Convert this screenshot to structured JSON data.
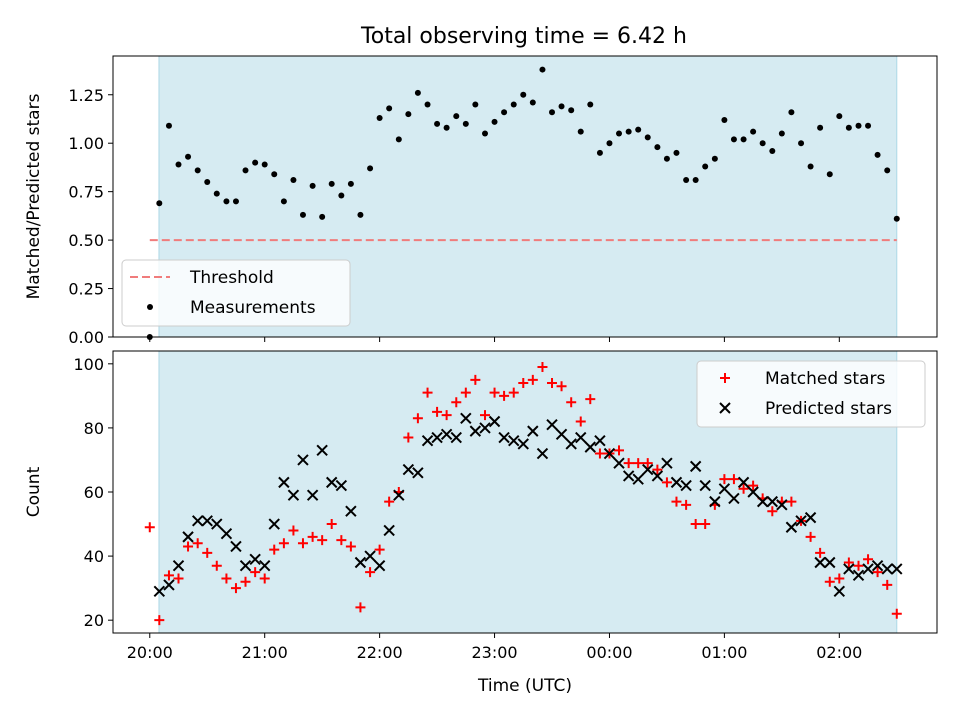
{
  "title": "Total observing time = 6.42 h",
  "chart_data": [
    {
      "type": "scatter",
      "ylabel": "Matched/Predicted stars",
      "ylim": [
        0,
        1.45
      ],
      "yticks": [
        "0.00",
        "0.25",
        "0.50",
        "0.75",
        "1.00",
        "1.25"
      ],
      "ytick_values": [
        0,
        0.25,
        0.5,
        0.75,
        1.0,
        1.25
      ],
      "xlim": [
        -0.32,
        6.85
      ],
      "observing_window": [
        0.08,
        6.5
      ],
      "legend": {
        "position": "lower-left",
        "entries": [
          "Threshold",
          "Measurements"
        ]
      },
      "threshold": {
        "name": "Threshold",
        "value": 0.5,
        "x": [
          0,
          6.5
        ],
        "color": "#f07c7c"
      },
      "series": [
        {
          "name": "Measurements",
          "color": "#000000",
          "x": [
            0.0,
            0.083,
            0.167,
            0.25,
            0.333,
            0.417,
            0.5,
            0.583,
            0.667,
            0.75,
            0.833,
            0.917,
            1.0,
            1.083,
            1.167,
            1.25,
            1.333,
            1.417,
            1.5,
            1.583,
            1.667,
            1.75,
            1.833,
            1.917,
            2.0,
            2.083,
            2.167,
            2.25,
            2.333,
            2.417,
            2.5,
            2.583,
            2.667,
            2.75,
            2.833,
            2.917,
            3.0,
            3.083,
            3.167,
            3.25,
            3.333,
            3.417,
            3.5,
            3.583,
            3.667,
            3.75,
            3.833,
            3.917,
            4.0,
            4.083,
            4.167,
            4.25,
            4.333,
            4.417,
            4.5,
            4.583,
            4.667,
            4.75,
            4.833,
            4.917,
            5.0,
            5.083,
            5.167,
            5.25,
            5.333,
            5.417,
            5.5,
            5.583,
            5.667,
            5.75,
            5.833,
            5.917,
            6.0,
            6.083,
            6.167,
            6.25,
            6.333,
            6.417,
            6.5
          ],
          "y": [
            0.0,
            0.69,
            1.09,
            0.89,
            0.93,
            0.86,
            0.8,
            0.74,
            0.7,
            0.7,
            0.86,
            0.9,
            0.89,
            0.84,
            0.7,
            0.81,
            0.63,
            0.78,
            0.62,
            0.79,
            0.73,
            0.79,
            0.63,
            0.87,
            1.13,
            1.18,
            1.02,
            1.15,
            1.26,
            1.2,
            1.1,
            1.08,
            1.14,
            1.1,
            1.2,
            1.05,
            1.11,
            1.16,
            1.2,
            1.25,
            1.21,
            1.38,
            1.16,
            1.19,
            1.17,
            1.06,
            1.2,
            0.95,
            1.0,
            1.05,
            1.06,
            1.07,
            1.03,
            0.98,
            0.92,
            0.95,
            0.81,
            0.81,
            0.88,
            0.92,
            1.12,
            1.02,
            1.02,
            1.06,
            1.0,
            0.96,
            1.05,
            1.16,
            1.0,
            0.88,
            1.08,
            0.84,
            1.14,
            1.08,
            1.09,
            1.09,
            0.94,
            0.86,
            0.61
          ]
        }
      ]
    },
    {
      "type": "scatter",
      "ylabel": "Count",
      "xlabel": "Time (UTC)",
      "ylim": [
        16,
        104
      ],
      "yticks": [
        "20",
        "40",
        "60",
        "80",
        "100"
      ],
      "ytick_values": [
        20,
        40,
        60,
        80,
        100
      ],
      "xlim": [
        -0.32,
        6.85
      ],
      "xticks": [
        "20:00",
        "21:00",
        "22:00",
        "23:00",
        "00:00",
        "01:00",
        "02:00"
      ],
      "xtick_values": [
        0,
        1,
        2,
        3,
        4,
        5,
        6
      ],
      "observing_window": [
        0.08,
        6.5
      ],
      "legend": {
        "position": "upper-right",
        "entries": [
          "Matched stars",
          "Predicted stars"
        ]
      },
      "series": [
        {
          "name": "Matched stars",
          "marker": "plus",
          "color": "#ff0000",
          "x": [
            0.0,
            0.083,
            0.167,
            0.25,
            0.333,
            0.417,
            0.5,
            0.583,
            0.667,
            0.75,
            0.833,
            0.917,
            1.0,
            1.083,
            1.167,
            1.25,
            1.333,
            1.417,
            1.5,
            1.583,
            1.667,
            1.75,
            1.833,
            1.917,
            2.0,
            2.083,
            2.167,
            2.25,
            2.333,
            2.417,
            2.5,
            2.583,
            2.667,
            2.75,
            2.833,
            2.917,
            3.0,
            3.083,
            3.167,
            3.25,
            3.333,
            3.417,
            3.5,
            3.583,
            3.667,
            3.75,
            3.833,
            3.917,
            4.0,
            4.083,
            4.167,
            4.25,
            4.333,
            4.417,
            4.5,
            4.583,
            4.667,
            4.75,
            4.833,
            4.917,
            5.0,
            5.083,
            5.167,
            5.25,
            5.333,
            5.417,
            5.5,
            5.583,
            5.667,
            5.75,
            5.833,
            5.917,
            6.0,
            6.083,
            6.167,
            6.25,
            6.333,
            6.417,
            6.5
          ],
          "y": [
            49,
            20,
            34,
            33,
            43,
            44,
            41,
            37,
            33,
            30,
            32,
            35,
            33,
            42,
            44,
            48,
            44,
            46,
            45,
            50,
            45,
            43,
            24,
            35,
            42,
            57,
            60,
            77,
            83,
            91,
            85,
            84,
            88,
            91,
            95,
            84,
            91,
            90,
            91,
            94,
            95,
            99,
            94,
            93,
            88,
            82,
            89,
            72,
            72,
            73,
            69,
            69,
            69,
            67,
            63,
            57,
            56,
            50,
            50,
            56,
            64,
            64,
            61,
            62,
            58,
            54,
            57,
            57,
            51,
            46,
            41,
            32,
            33,
            38,
            37,
            39,
            35,
            31,
            22
          ]
        },
        {
          "name": "Predicted stars",
          "marker": "x",
          "color": "#000000",
          "x": [
            0.083,
            0.167,
            0.25,
            0.333,
            0.417,
            0.5,
            0.583,
            0.667,
            0.75,
            0.833,
            0.917,
            1.0,
            1.083,
            1.167,
            1.25,
            1.333,
            1.417,
            1.5,
            1.583,
            1.667,
            1.75,
            1.833,
            1.917,
            2.0,
            2.083,
            2.167,
            2.25,
            2.333,
            2.417,
            2.5,
            2.583,
            2.667,
            2.75,
            2.833,
            2.917,
            3.0,
            3.083,
            3.167,
            3.25,
            3.333,
            3.417,
            3.5,
            3.583,
            3.667,
            3.75,
            3.833,
            3.917,
            4.0,
            4.083,
            4.167,
            4.25,
            4.333,
            4.417,
            4.5,
            4.583,
            4.667,
            4.75,
            4.833,
            4.917,
            5.0,
            5.083,
            5.167,
            5.25,
            5.333,
            5.417,
            5.5,
            5.583,
            5.667,
            5.75,
            5.833,
            5.917,
            6.0,
            6.083,
            6.167,
            6.25,
            6.333,
            6.417,
            6.5
          ],
          "y": [
            29,
            31,
            37,
            46,
            51,
            51,
            50,
            47,
            43,
            37,
            39,
            37,
            50,
            63,
            59,
            70,
            59,
            73,
            63,
            62,
            54,
            38,
            40,
            37,
            48,
            59,
            67,
            66,
            76,
            77,
            78,
            77,
            83,
            79,
            80,
            82,
            77,
            76,
            75,
            79,
            72,
            81,
            78,
            75,
            77,
            74,
            76,
            72,
            69,
            65,
            64,
            67,
            65,
            69,
            63,
            62,
            68,
            62,
            57,
            61,
            58,
            63,
            60,
            57,
            57,
            56,
            49,
            51,
            52,
            38,
            38,
            29,
            36,
            34,
            36,
            37,
            36,
            36
          ]
        }
      ]
    }
  ]
}
